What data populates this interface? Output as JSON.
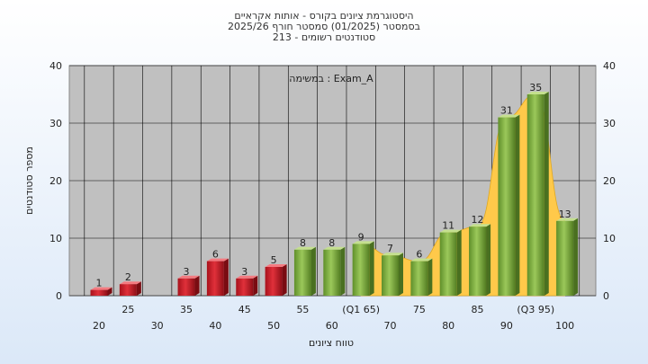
{
  "title_lines": [
    "היסטוגרמת ציונים בקורס - אותות אקראיים",
    "בסמסטר  (01/2025)  סמסטר חורף  2025/26",
    "סטודנטים רשומים - 213"
  ],
  "annotation": "במשימה : Exam_A",
  "colors": {
    "fail_bar": "#e0303a",
    "pass_bar": "#9bc85a",
    "curve": "#ffc94a",
    "plot_bg": "#c0c0c0",
    "grid": "#000000"
  },
  "chart_data": {
    "type": "bar",
    "xlabel": "טווח ציונים",
    "ylabel": "מספר סטודנטים",
    "ylim": [
      0,
      40
    ],
    "yticks": [
      0,
      10,
      20,
      30,
      40
    ],
    "bins": [
      20,
      25,
      30,
      35,
      40,
      45,
      50,
      55,
      60,
      65,
      70,
      75,
      80,
      85,
      90,
      95,
      100
    ],
    "values": [
      1,
      2,
      0,
      3,
      6,
      3,
      5,
      8,
      8,
      9,
      7,
      6,
      11,
      12,
      31,
      35,
      13
    ],
    "pass_threshold": 55,
    "x_tick_labels": [
      "20",
      "25",
      "30",
      "35",
      "40",
      "45",
      "50",
      "55",
      "60",
      "(Q1 65)",
      "70",
      "75",
      "80",
      "85",
      "90",
      "(Q3 95)",
      "100"
    ],
    "smooth_curve_start_bin": 65
  }
}
